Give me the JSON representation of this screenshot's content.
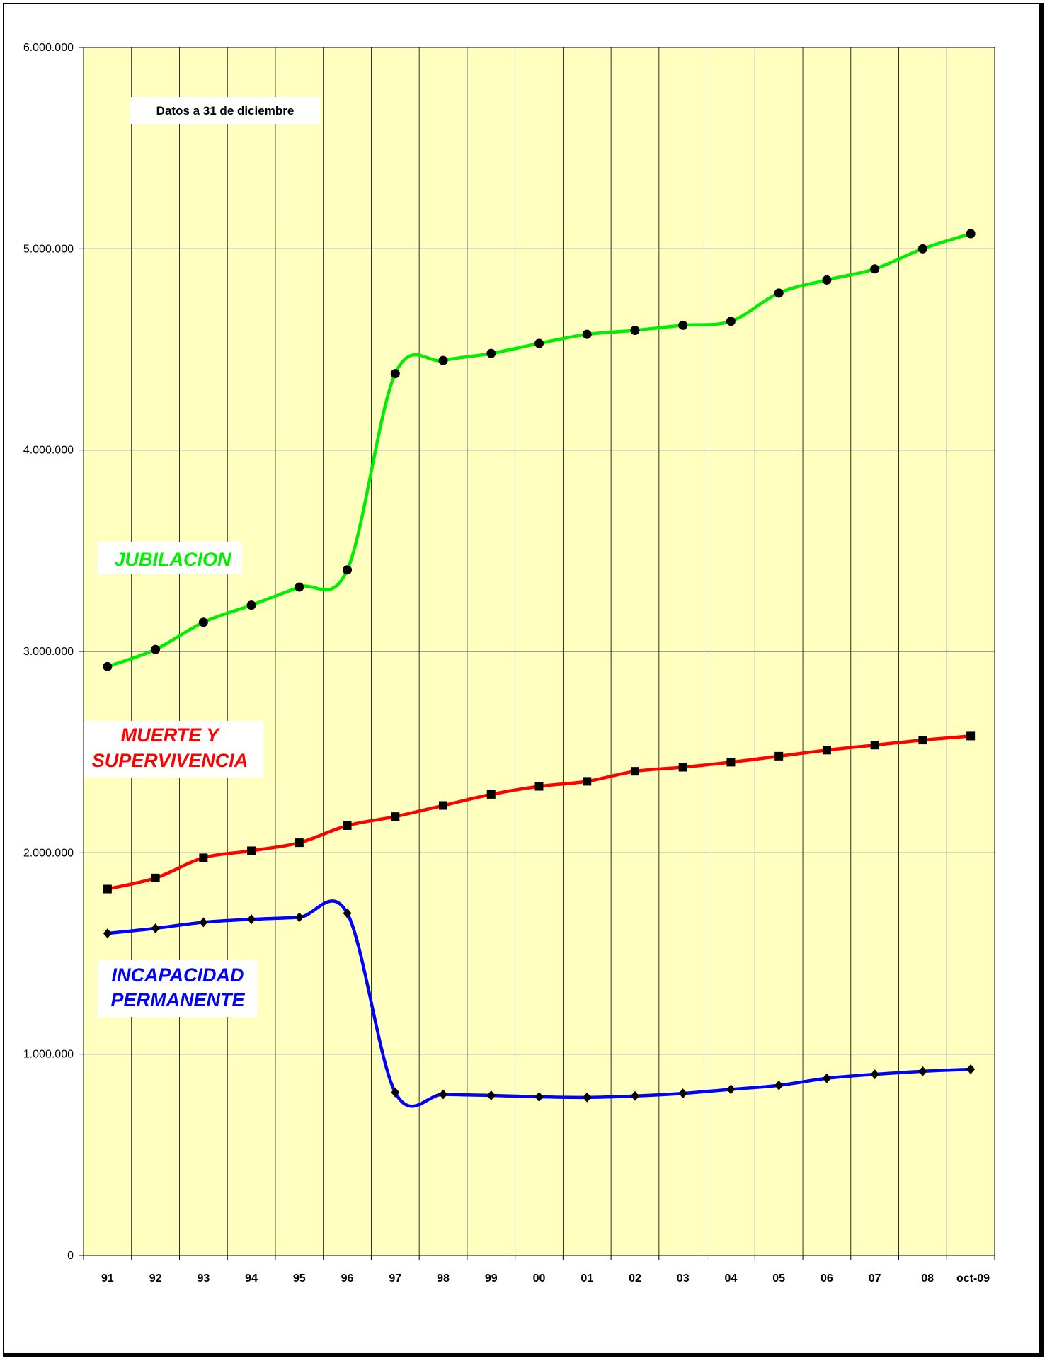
{
  "chart_data": {
    "type": "line",
    "categories": [
      "91",
      "92",
      "93",
      "94",
      "95",
      "96",
      "97",
      "98",
      "99",
      "00",
      "01",
      "02",
      "03",
      "04",
      "05",
      "06",
      "07",
      "08",
      "oct-09"
    ],
    "ylim": [
      0,
      6000000
    ],
    "yticks": [
      0,
      1000000,
      2000000,
      3000000,
      4000000,
      5000000,
      6000000
    ],
    "ytick_labels": [
      "0",
      "1.000.000",
      "2.000.000",
      "3.000.000",
      "4.000.000",
      "5.000.000",
      "6.000.000"
    ],
    "grid": true,
    "note": "Datos a 31 de diciembre",
    "series": [
      {
        "name": "JUBILACION",
        "color": "#00ee00",
        "marker": "circle",
        "values": [
          2925000,
          3010000,
          3145000,
          3230000,
          3320000,
          3405000,
          4380000,
          4445000,
          4480000,
          4530000,
          4575000,
          4595000,
          4620000,
          4640000,
          4780000,
          4845000,
          4900000,
          5000000,
          5075000
        ]
      },
      {
        "name": "MUERTE Y SUPERVIVENCIA",
        "label_lines": [
          "MUERTE Y",
          "SUPERVIVENCIA"
        ],
        "color": "#ff0000",
        "marker": "square",
        "values": [
          1820000,
          1875000,
          1975000,
          2010000,
          2050000,
          2135000,
          2180000,
          2235000,
          2290000,
          2330000,
          2355000,
          2405000,
          2425000,
          2450000,
          2480000,
          2510000,
          2535000,
          2560000,
          2580000
        ]
      },
      {
        "name": "INCAPACIDAD PERMANENTE",
        "label_lines": [
          "INCAPACIDAD",
          "PERMANENTE"
        ],
        "color": "#0000ff",
        "marker": "diamond",
        "values": [
          1600000,
          1625000,
          1655000,
          1670000,
          1680000,
          1700000,
          810000,
          800000,
          795000,
          788000,
          785000,
          792000,
          805000,
          825000,
          845000,
          880000,
          900000,
          915000,
          925000
        ]
      }
    ]
  }
}
